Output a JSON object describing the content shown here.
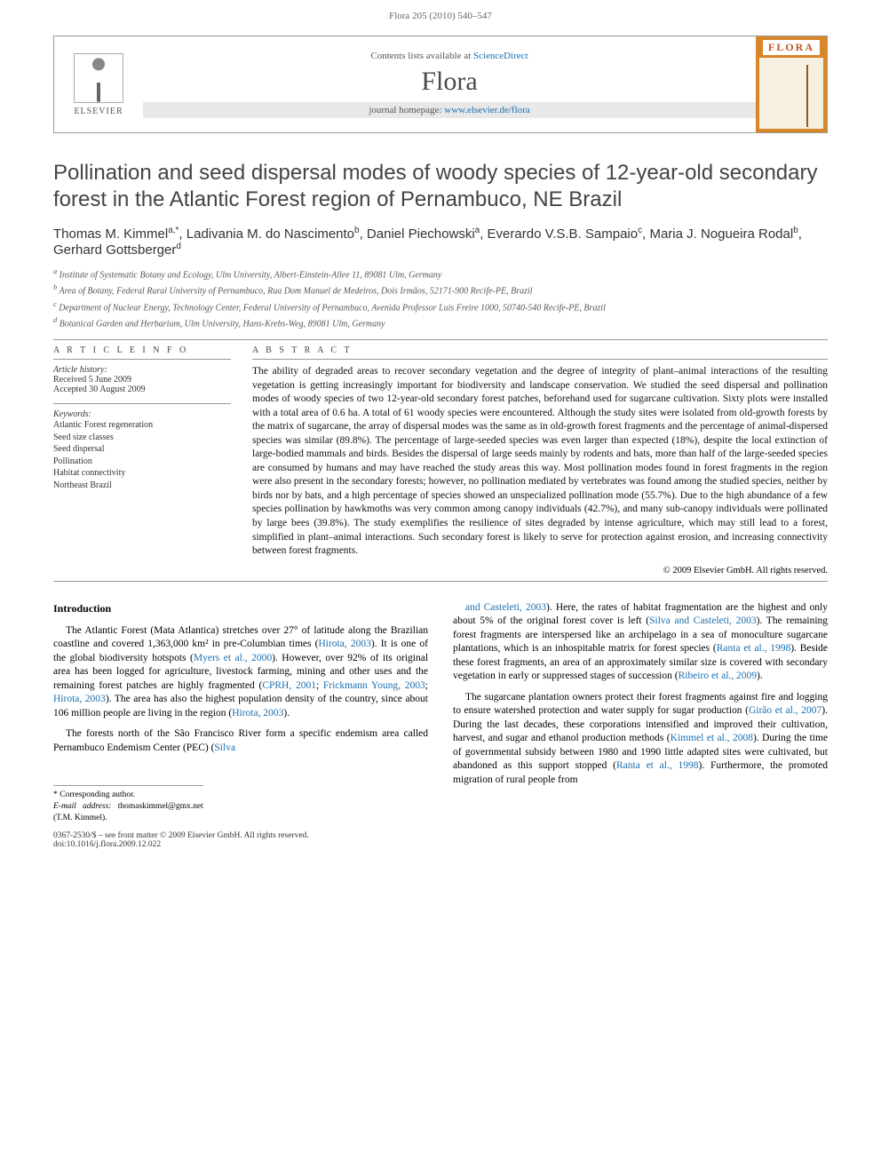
{
  "header": {
    "citation": "Flora 205 (2010) 540–547"
  },
  "journalBox": {
    "elsevier": "ELSEVIER",
    "contentsPrefix": "Contents lists available at ",
    "contentsLink": "ScienceDirect",
    "name": "Flora",
    "homepagePrefix": "journal homepage: ",
    "homepageLink": "www.elsevier.de/flora",
    "coverTitle": "FLORA"
  },
  "article": {
    "title": "Pollination and seed dispersal modes of woody species of 12-year-old secondary forest in the Atlantic Forest region of Pernambuco, NE Brazil",
    "authorsHtml": "Thomas M. Kimmel<sup>a,*</sup>, Ladivania M. do Nascimento<sup>b</sup>, Daniel Piechowski<sup>a</sup>, Everardo V.S.B. Sampaio<sup>c</sup>, Maria J. Nogueira Rodal<sup>b</sup>, Gerhard Gottsberger<sup>d</sup>",
    "affiliations": [
      "a Institute of Systematic Botany and Ecology, Ulm University, Albert-Einstein-Allee 11, 89081 Ulm, Germany",
      "b Area of Botany, Federal Rural University of Pernambuco, Rua Dom Manuel de Medeiros, Dois Irmãos, 52171-900 Recife-PE, Brazil",
      "c Department of Nuclear Energy, Technology Center, Federal University of Pernambuco, Avenida Professor Luis Freire 1000, 50740-540 Recife-PE, Brazil",
      "d Botanical Garden and Herbarium, Ulm University, Hans-Krebs-Weg, 89081 Ulm, Germany"
    ]
  },
  "info": {
    "infoHead": "A R T I C L E   I N F O",
    "historyLabel": "Article history:",
    "received": "Received 5 June 2009",
    "accepted": "Accepted 30 August 2009",
    "keywordsLabel": "Keywords:",
    "keywords": [
      "Atlantic Forest regeneration",
      "Seed size classes",
      "Seed dispersal",
      "Pollination",
      "Habitat connectivity",
      "Northeast Brazil"
    ]
  },
  "abstract": {
    "head": "A B S T R A C T",
    "text": "The ability of degraded areas to recover secondary vegetation and the degree of integrity of plant–animal interactions of the resulting vegetation is getting increasingly important for biodiversity and landscape conservation. We studied the seed dispersal and pollination modes of woody species of two 12-year-old secondary forest patches, beforehand used for sugarcane cultivation. Sixty plots were installed with a total area of 0.6 ha. A total of 61 woody species were encountered. Although the study sites were isolated from old-growth forests by the matrix of sugarcane, the array of dispersal modes was the same as in old-growth forest fragments and the percentage of animal-dispersed species was similar (89.8%). The percentage of large-seeded species was even larger than expected (18%), despite the local extinction of large-bodied mammals and birds. Besides the dispersal of large seeds mainly by rodents and bats, more than half of the large-seeded species are consumed by humans and may have reached the study areas this way. Most pollination modes found in forest fragments in the region were also present in the secondary forests; however, no pollination mediated by vertebrates was found among the studied species, neither by birds nor by bats, and a high percentage of species showed an unspecialized pollination mode (55.7%). Due to the high abundance of a few species pollination by hawkmoths was very common among canopy individuals (42.7%), and many sub-canopy individuals were pollinated by large bees (39.8%). The study exemplifies the resilience of sites degraded by intense agriculture, which may still lead to a forest, simplified in plant–animal interactions. Such secondary forest is likely to serve for protection against erosion, and increasing connectivity between forest fragments.",
    "copyright": "© 2009 Elsevier GmbH. All rights reserved."
  },
  "body": {
    "sectionHead": "Introduction",
    "leftParas": [
      "The Atlantic Forest (Mata Atlantica) stretches over 27° of latitude along the Brazilian coastline and covered 1,363,000 km² in pre-Columbian times (<span class=\"cite\">Hirota, 2003</span>). It is one of the global biodiversity hotspots (<span class=\"cite\">Myers et al., 2000</span>). However, over 92% of its original area has been logged for agriculture, livestock farming, mining and other uses and the remaining forest patches are highly fragmented (<span class=\"cite\">CPRH, 2001</span>; <span class=\"cite\">Frickmann Young, 2003</span>; <span class=\"cite\">Hirota, 2003</span>). The area has also the highest population density of the country, since about 106 million people are living in the region (<span class=\"cite\">Hirota, 2003</span>).",
      "The forests north of the São Francisco River form a specific endemism area called Pernambuco Endemism Center (PEC) (<span class=\"cite\">Silva</span>"
    ],
    "rightParas": [
      "<span class=\"cite\">and Casteleti, 2003</span>). Here, the rates of habitat fragmentation are the highest and only about 5% of the original forest cover is left (<span class=\"cite\">Silva and Casteleti, 2003</span>). The remaining forest fragments are interspersed like an archipelago in a sea of monoculture sugarcane plantations, which is an inhospitable matrix for forest species (<span class=\"cite\">Ranta et al., 1998</span>). Beside these forest fragments, an area of an approximately similar size is covered with secondary vegetation in early or suppressed stages of succession (<span class=\"cite\">Ribeiro et al., 2009</span>).",
      "The sugarcane plantation owners protect their forest fragments against fire and logging to ensure watershed protection and water supply for sugar production (<span class=\"cite\">Girão et al., 2007</span>). During the last decades, these corporations intensified and improved their cultivation, harvest, and sugar and ethanol production methods (<span class=\"cite\">Kimmel et al., 2008</span>). During the time of governmental subsidy between 1980 and 1990 little adapted sites were cultivated, but abandoned as this support stopped (<span class=\"cite\">Ranta et al., 1998</span>). Furthermore, the promoted migration of rural people from"
    ]
  },
  "footnote": {
    "corr": "* Corresponding author.",
    "emailLabel": "E-mail address:",
    "email": "thomaskimmel@gmx.net (T.M. Kimmel)."
  },
  "footer": {
    "line1": "0367-2530/$ – see front matter © 2009 Elsevier GmbH. All rights reserved.",
    "line2": "doi:10.1016/j.flora.2009.12.022"
  },
  "colors": {
    "link": "#1a6fb0",
    "coverOrange": "#d98628",
    "textGrey": "#555"
  }
}
